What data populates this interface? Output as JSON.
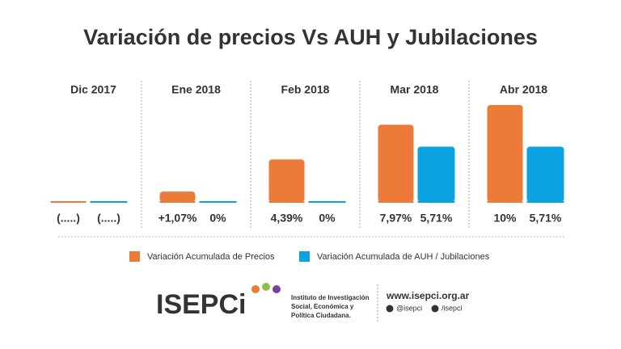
{
  "chart_data": {
    "type": "bar",
    "title": "Variación de precios Vs AUH y Jubilaciones",
    "categories": [
      "Dic 2017",
      "Ene 2018",
      "Feb 2018",
      "Mar 2018",
      "Abr 2018"
    ],
    "series": [
      {
        "name": "Variación Acumulada de Precios",
        "color": "#ec7a38",
        "values": [
          null,
          1.07,
          4.39,
          7.97,
          10
        ],
        "value_labels": [
          "(.....)",
          "+1,07%",
          "4,39%",
          "7,97%",
          "10%"
        ]
      },
      {
        "name": "Variación Acumulada de AUH / Jubilaciones",
        "color": "#0ba2e0",
        "values": [
          null,
          0,
          0,
          5.71,
          5.71
        ],
        "value_labels": [
          "(.....)",
          "0%",
          "0%",
          "5,71%",
          "5,71%"
        ]
      }
    ]
  },
  "footer": {
    "logo": "ISEPCi",
    "institute": [
      "Instituto de Investigación",
      "Social, Económica y",
      "Política Ciudadana."
    ],
    "website": "www.isepci.org.ar",
    "twitter": "@isepci",
    "facebook": "/isepci"
  }
}
